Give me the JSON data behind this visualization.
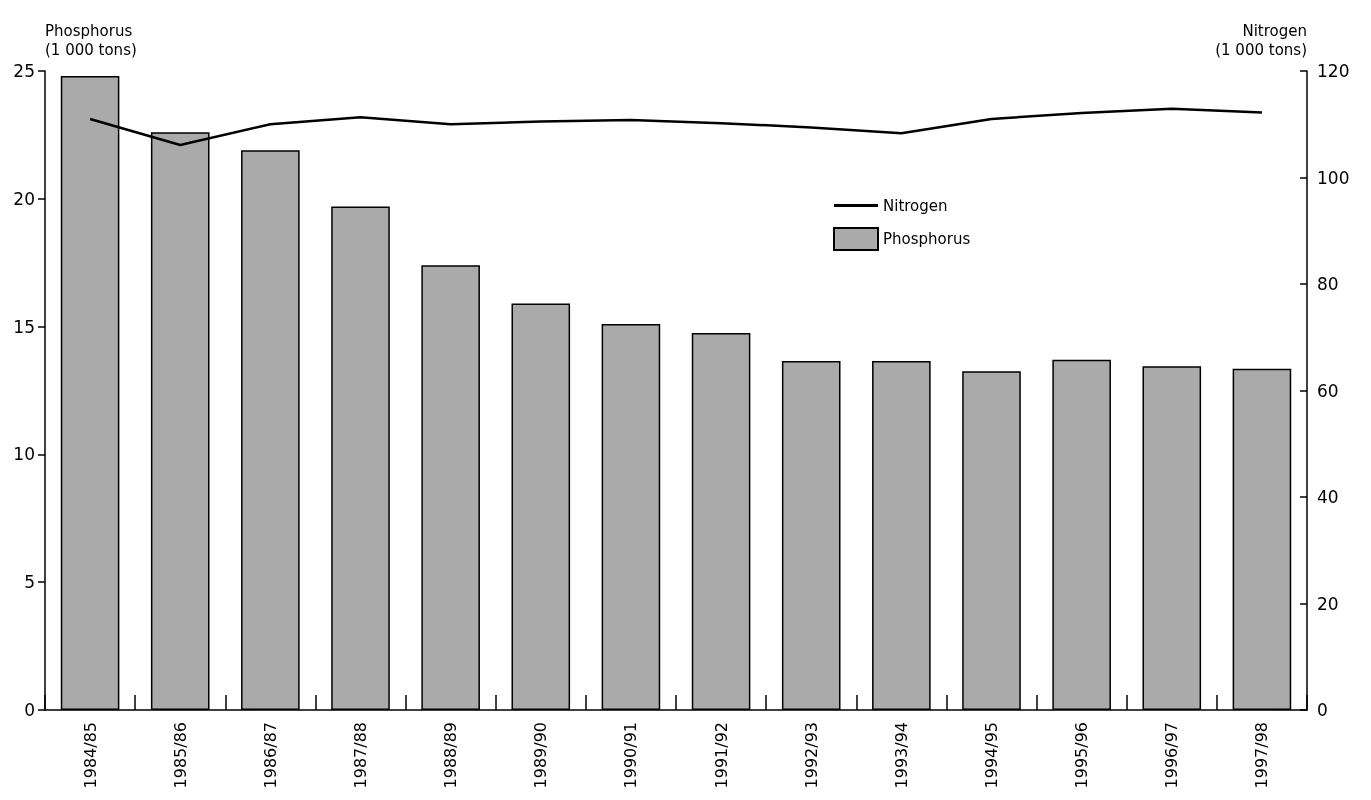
{
  "chart_data": {
    "type": "bar",
    "categories": [
      "1984/85",
      "1985/86",
      "1986/87",
      "1987/88",
      "1988/89",
      "1989/90",
      "1990/91",
      "1991/92",
      "1992/93",
      "1993/94",
      "1994/95",
      "1995/96",
      "1996/97",
      "1997/98"
    ],
    "series": [
      {
        "name": "Nitrogen",
        "type": "line",
        "axis": "y2",
        "color": "#000000",
        "values": [
          111.0,
          106.1,
          110.0,
          111.3,
          110.0,
          110.5,
          110.8,
          110.2,
          109.4,
          108.3,
          111.0,
          112.1,
          112.9,
          112.2
        ]
      },
      {
        "name": "Phosphorus",
        "color": "#aaaaaa",
        "values": [
          24.8,
          22.6,
          21.9,
          19.7,
          17.4,
          15.9,
          15.1,
          14.75,
          13.65,
          13.65,
          13.25,
          13.7,
          13.45,
          13.35
        ]
      }
    ],
    "ylabel": "Phosphorus (1 000 tons)",
    "y2label": "Nitrogen (1 000 tons)",
    "ylim": [
      0,
      25
    ],
    "yticks": [
      0,
      5,
      10,
      15,
      20,
      25
    ],
    "y2lim": [
      0,
      120
    ],
    "y2ticks": [
      0,
      20,
      40,
      60,
      80,
      100,
      120
    ],
    "legend": "top right",
    "grid": false,
    "marker": "none",
    "line_style": "solid"
  }
}
